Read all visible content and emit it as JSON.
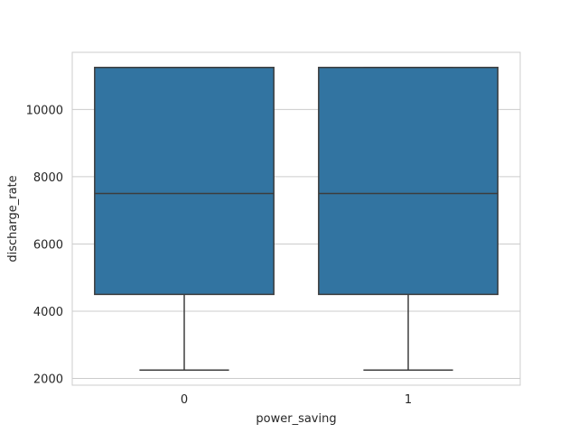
{
  "chart_data": {
    "type": "box",
    "xlabel": "power_saving",
    "ylabel": "discharge_rate",
    "categories": [
      "0",
      "1"
    ],
    "boxes": [
      {
        "category": "0",
        "whisker_low": 2250,
        "q1": 4500,
        "median": 7500,
        "q3": 11250,
        "whisker_high": 11250
      },
      {
        "category": "1",
        "whisker_low": 2250,
        "q1": 4500,
        "median": 7500,
        "q3": 11250,
        "whisker_high": 11250
      }
    ],
    "yticks": [
      2000,
      4000,
      6000,
      8000,
      10000
    ],
    "ytick_labels": [
      "2000",
      "4000",
      "6000",
      "8000",
      "10000"
    ],
    "ylim": [
      1800,
      11700
    ],
    "grid": true,
    "box_color": "#3274a1",
    "line_color": "#3d3d3d",
    "grid_color": "#cccccc",
    "spine_color": "#cccccc"
  }
}
